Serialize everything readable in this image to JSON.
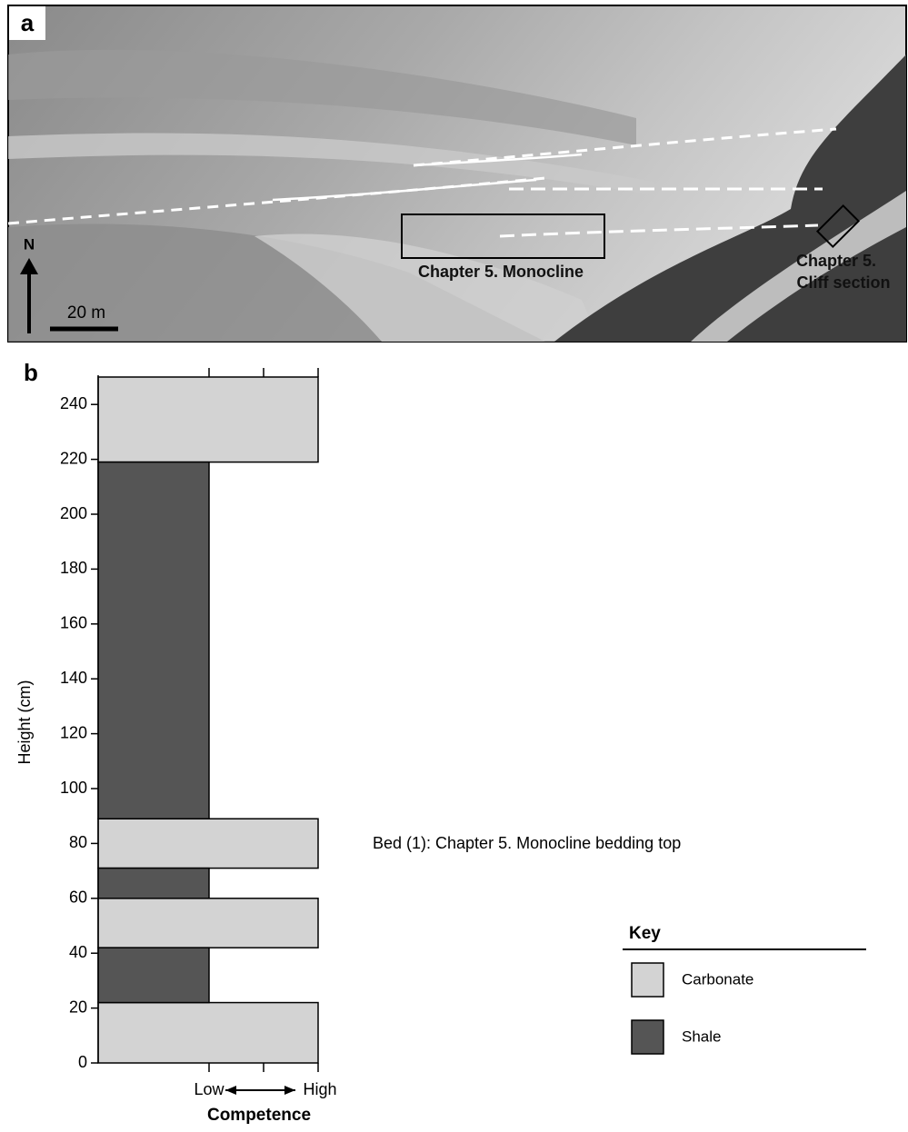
{
  "photo_panel": {
    "label": "a",
    "north": "N",
    "scale": "20 m",
    "box_label": "Chapter 5. Monocline",
    "cliff_label": [
      "Chapter 5.",
      "Cliff section"
    ]
  },
  "chart_data": {
    "type": "strat-log",
    "panel_label": "b",
    "ylabel": "Height (cm)",
    "xlabel": "Competence",
    "ylim": [
      0,
      250
    ],
    "yticks": [
      0,
      20,
      40,
      60,
      80,
      100,
      120,
      140,
      160,
      180,
      200,
      220,
      240
    ],
    "competence_levels": [
      "Low",
      "High"
    ],
    "series": [
      {
        "name": "Carbonate",
        "color": "#d3d3d3",
        "competence": "High",
        "beds": [
          [
            0,
            22
          ],
          [
            42,
            60
          ],
          [
            71,
            89
          ],
          [
            219,
            250
          ]
        ]
      },
      {
        "name": "Shale",
        "color": "#555555",
        "competence": "Low",
        "beds": [
          [
            22,
            42
          ],
          [
            60,
            71
          ],
          [
            89,
            219
          ]
        ]
      }
    ],
    "annotation": "Bed (1): Chapter 5. Monocline bedding top",
    "legend_title": "Key"
  }
}
